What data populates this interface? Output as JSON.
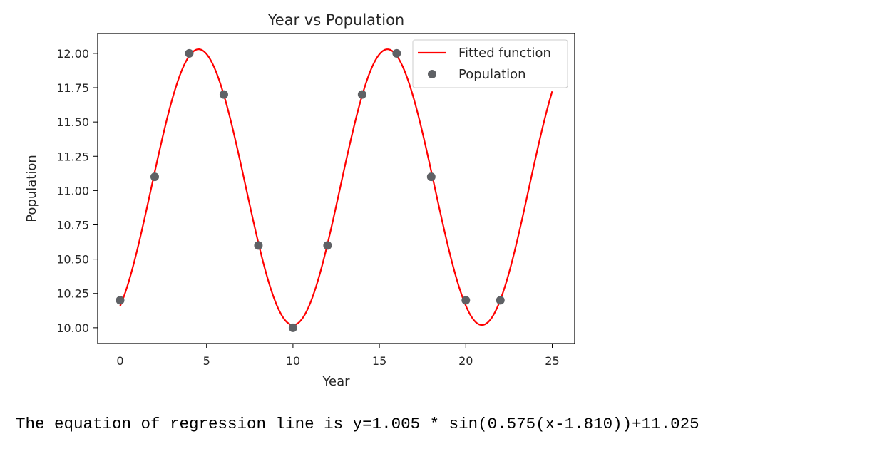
{
  "chart_data": {
    "type": "scatter",
    "title": "Year vs Population",
    "xlabel": "Year",
    "ylabel": "Population",
    "xlim": [
      -1.3,
      26.3
    ],
    "ylim": [
      9.885,
      12.145
    ],
    "xticks": [
      0,
      5,
      10,
      15,
      20,
      25
    ],
    "xtick_labels": [
      "0",
      "5",
      "10",
      "15",
      "20",
      "25"
    ],
    "yticks": [
      10.0,
      10.25,
      10.5,
      10.75,
      11.0,
      11.25,
      11.5,
      11.75,
      12.0
    ],
    "ytick_labels": [
      "10.00",
      "10.25",
      "10.50",
      "10.75",
      "11.00",
      "11.25",
      "11.50",
      "11.75",
      "12.00"
    ],
    "grid": false,
    "legend_position": "top-right",
    "series": [
      {
        "name": "Fitted function",
        "kind": "line",
        "color": "#ff0000",
        "function": {
          "form": "a*sin(b*(x-c))+d",
          "a": 1.005,
          "b": 0.575,
          "c": 1.81,
          "d": 11.025
        },
        "x_range": [
          0,
          25
        ]
      },
      {
        "name": "Population",
        "kind": "scatter",
        "color": "#5f6165",
        "x": [
          0,
          2,
          4,
          6,
          8,
          10,
          12,
          14,
          16,
          18,
          20,
          22
        ],
        "y": [
          10.2,
          11.1,
          12.0,
          11.7,
          10.6,
          10.0,
          10.6,
          11.7,
          12.0,
          11.1,
          10.2,
          10.2
        ]
      }
    ]
  },
  "equation_text": "The equation of regression line is y=1.005 * sin(0.575(x-1.810))+11.025"
}
